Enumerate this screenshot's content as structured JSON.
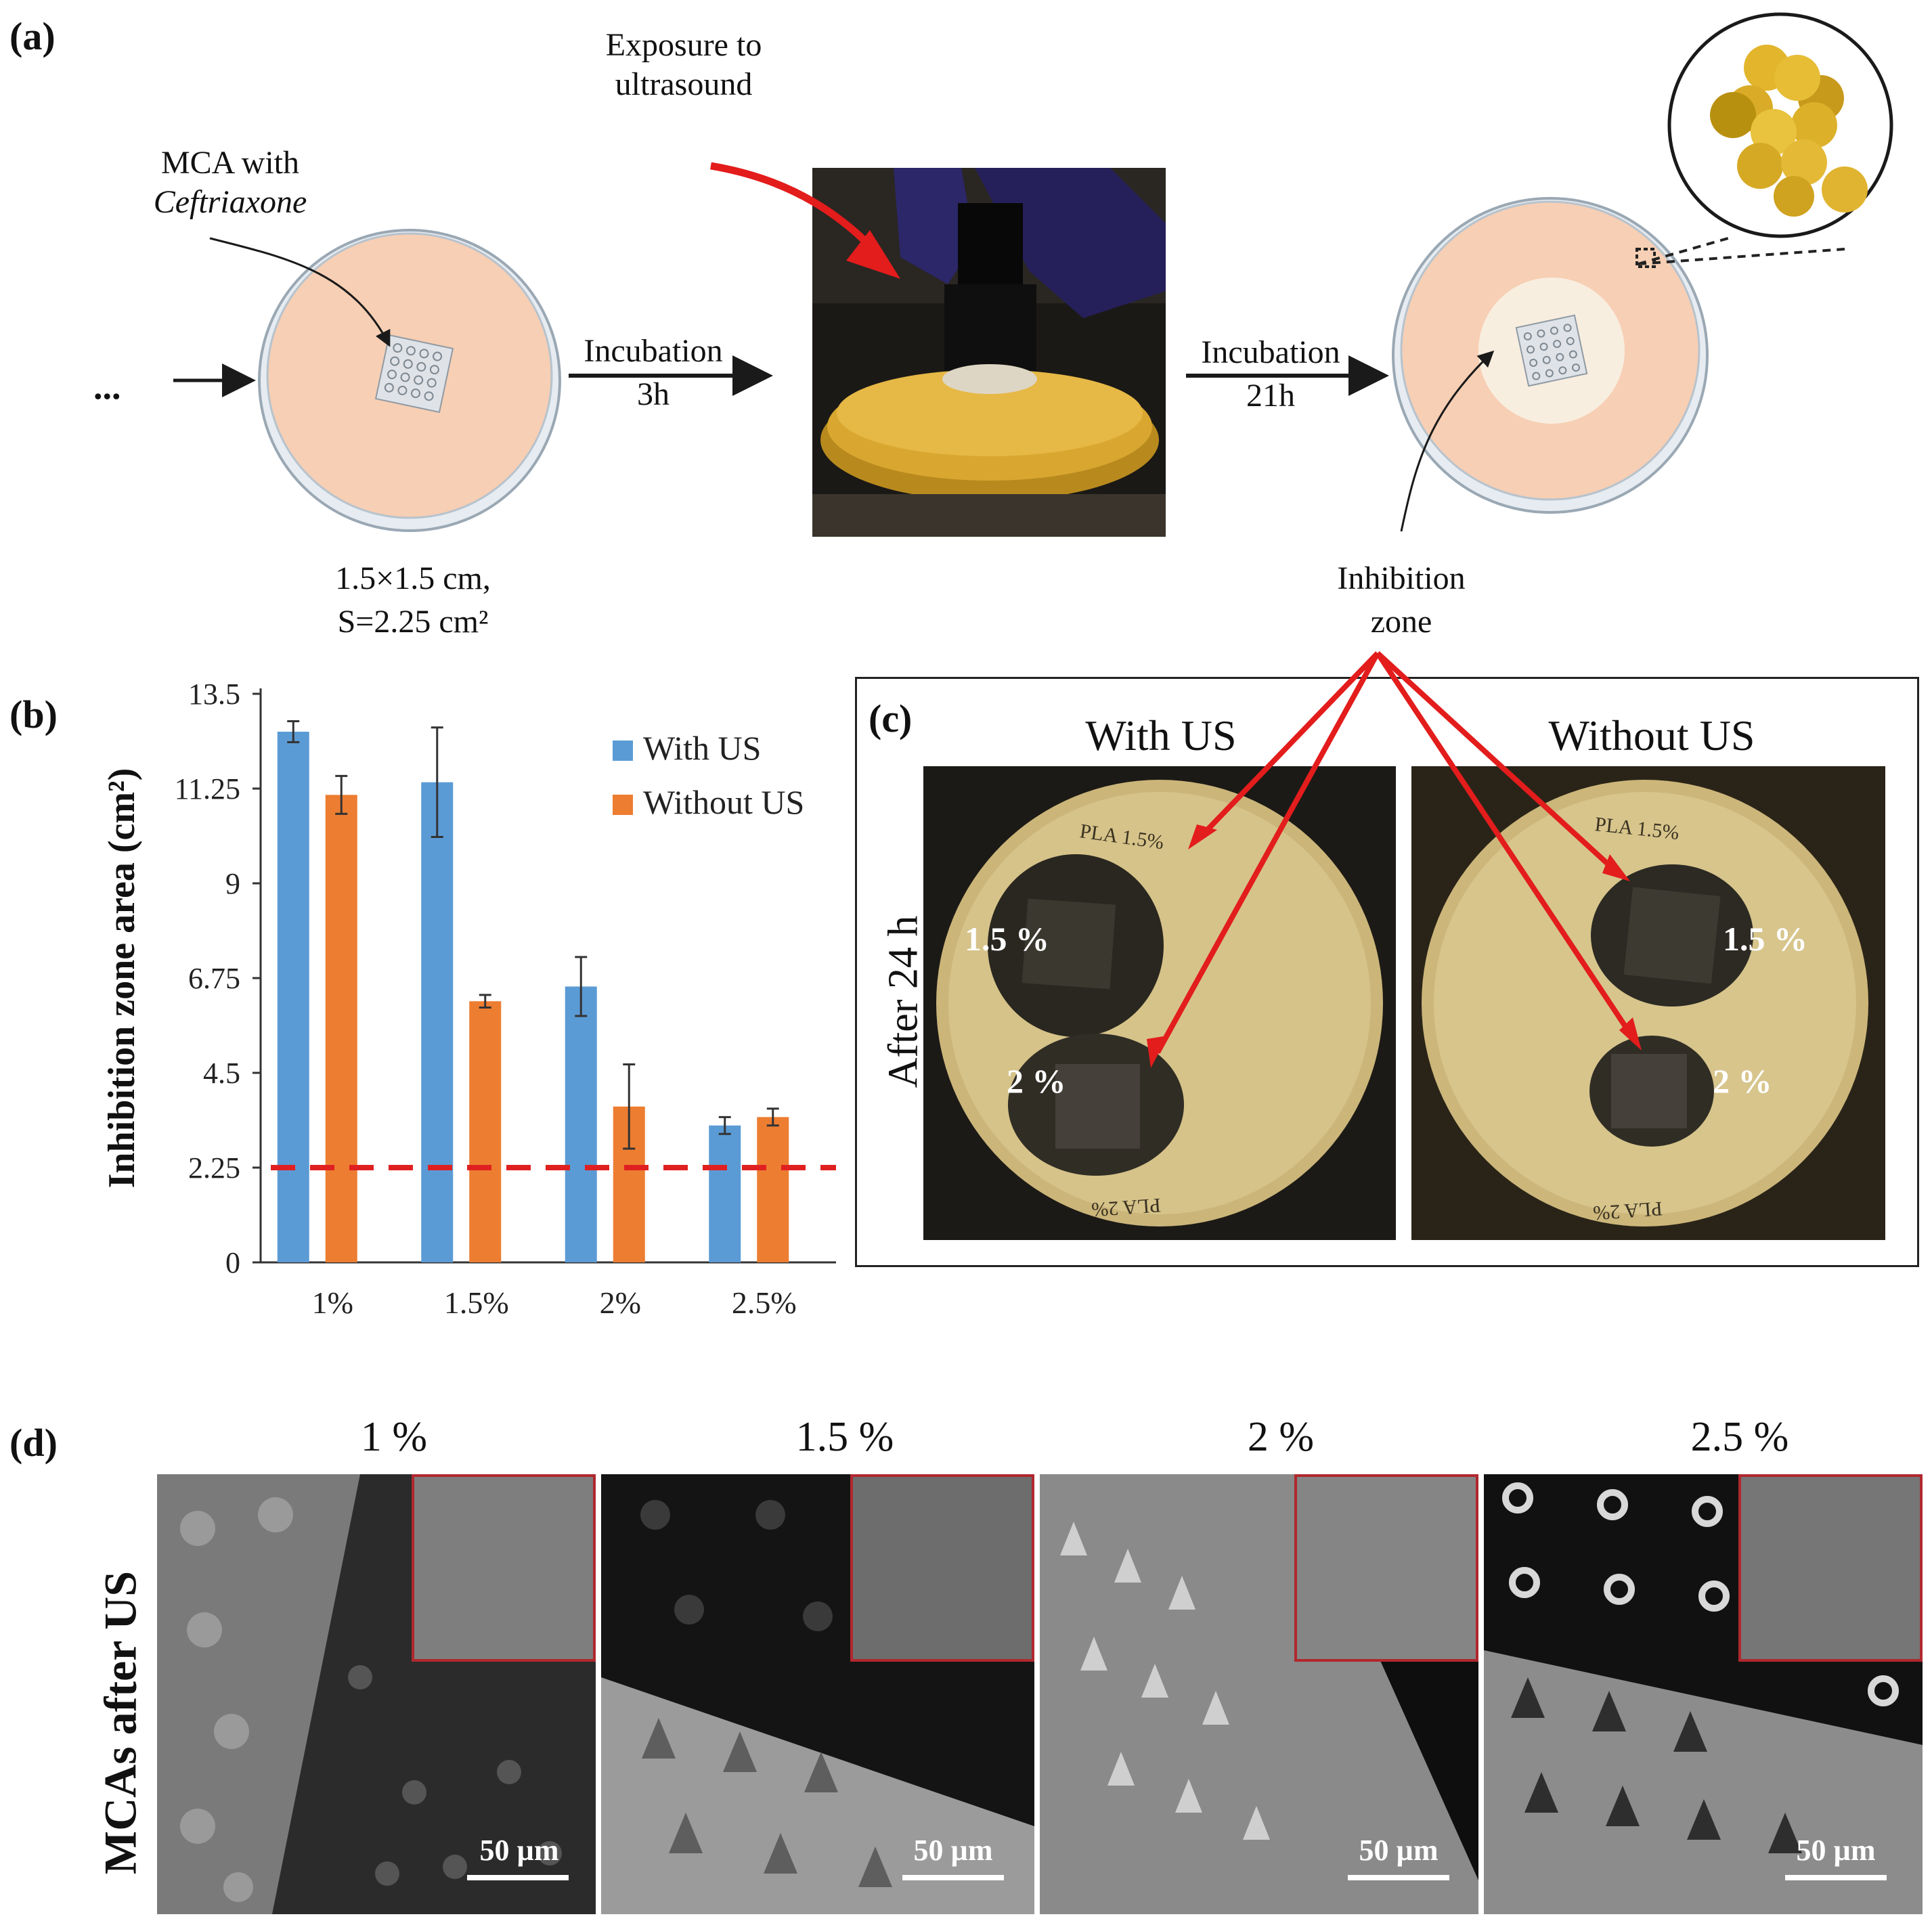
{
  "panel_a": {
    "label": "(a)",
    "ellipsis": "...",
    "mca_label": "MCA with",
    "mca_drug": "Ceftriaxone",
    "size_line1": "1.5×1.5 cm,",
    "size_line2": "S=2.25 cm²",
    "exposure_line1": "Exposure to",
    "exposure_line2": "ultrasound",
    "incubation1_line1": "Incubation",
    "incubation1_line2": "3h",
    "incubation2_line1": "Incubation",
    "incubation2_line2": "21h",
    "inhibition_line1": "Inhibition",
    "inhibition_line2": "zone",
    "colors": {
      "agar": "#f7cfb4",
      "dish": "#c7d3dd",
      "arrow_red": "#e31c1c",
      "bacteria": "#d4a826"
    }
  },
  "panel_b": {
    "label": "(b)"
  },
  "panel_c": {
    "label": "(c)",
    "col_with": "With US",
    "col_without": "Without US",
    "row_label": "After 24 h",
    "zone_label_15": "1.5 %",
    "zone_label_2": "2 %",
    "plate_text_top": "PLA 1.5%",
    "plate_text_bottom": "PLA 2%"
  },
  "panel_d": {
    "label": "(d)",
    "row_label": "MCAs after US",
    "titles": [
      "1 %",
      "1.5 %",
      "2 %",
      "2.5 %"
    ],
    "scale_label": "50 µm"
  },
  "chart_data": {
    "type": "bar",
    "title": "",
    "xlabel": "",
    "ylabel": "Inhibition zone area (cm²)",
    "categories": [
      "1%",
      "1.5%",
      "2%",
      "2.5%"
    ],
    "yticks": [
      "0",
      "2.25",
      "4.5",
      "6.75",
      "9",
      "11.25",
      "13.5"
    ],
    "ylim": [
      0,
      13.5
    ],
    "reference_line": {
      "value": 2.25,
      "color": "#e02020",
      "style": "dashed",
      "meaning": "MCA area"
    },
    "legend_position": "top-right",
    "series": [
      {
        "name": "With US",
        "color": "#5b9bd5",
        "values": [
          12.6,
          11.4,
          6.55,
          3.25
        ],
        "errors": [
          0.25,
          1.3,
          0.7,
          0.2
        ]
      },
      {
        "name": "Without US",
        "color": "#ed7d31",
        "values": [
          11.1,
          6.2,
          3.7,
          3.45
        ],
        "errors": [
          0.45,
          0.15,
          1.0,
          0.2
        ]
      }
    ]
  }
}
